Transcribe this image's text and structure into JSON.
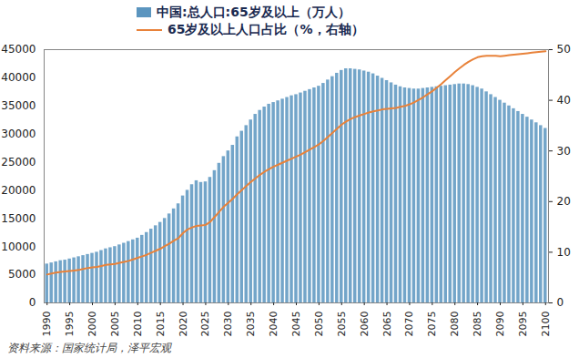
{
  "chart_data": {
    "type": "bar",
    "legend": "top",
    "grid": false,
    "caption": "资料来源：国家统计局，泽平宏观",
    "categories": [
      "1990",
      null,
      null,
      null,
      null,
      "1995",
      null,
      null,
      null,
      null,
      "2000",
      null,
      null,
      null,
      null,
      "2005",
      null,
      null,
      null,
      null,
      "2010",
      null,
      null,
      null,
      null,
      "2015",
      null,
      null,
      null,
      null,
      "2020",
      null,
      null,
      null,
      null,
      "2025",
      null,
      null,
      null,
      null,
      "2030",
      null,
      null,
      null,
      null,
      "2035",
      null,
      null,
      null,
      null,
      "2040",
      null,
      null,
      null,
      null,
      "2045",
      null,
      null,
      null,
      null,
      "2050",
      null,
      null,
      null,
      null,
      "2055",
      null,
      null,
      null,
      null,
      "2060",
      null,
      null,
      null,
      null,
      "2065",
      null,
      null,
      null,
      null,
      "2070",
      null,
      null,
      null,
      null,
      "2075",
      null,
      null,
      null,
      null,
      "2080",
      null,
      null,
      null,
      null,
      "2085",
      null,
      null,
      null,
      null,
      "2090",
      null,
      null,
      null,
      null,
      "2095",
      null,
      null,
      null,
      null,
      "2100"
    ],
    "ylim": [
      0,
      45000
    ],
    "yticks": [
      0,
      5000,
      10000,
      15000,
      20000,
      25000,
      30000,
      35000,
      40000,
      45000
    ],
    "y2lim": [
      0,
      50
    ],
    "y2ticks": [
      0,
      10,
      20,
      30,
      40,
      50
    ],
    "series": [
      {
        "name": "中国:总人口:65岁及以上（万人）",
        "type": "bar",
        "color": "#5b95bf",
        "values": [
          6900,
          7100,
          7300,
          7500,
          7600,
          7800,
          8000,
          8200,
          8400,
          8600,
          8800,
          9000,
          9300,
          9600,
          9800,
          10000,
          10300,
          10600,
          10900,
          11200,
          11500,
          12000,
          12500,
          13100,
          13700,
          14300,
          15000,
          15800,
          16700,
          17600,
          19000,
          20000,
          21000,
          21700,
          21400,
          21500,
          22300,
          23500,
          24800,
          26000,
          27000,
          28000,
          29500,
          30500,
          31500,
          32500,
          33500,
          34200,
          34800,
          35300,
          35600,
          35900,
          36200,
          36500,
          36800,
          37000,
          37300,
          37600,
          37900,
          38200,
          38500,
          39000,
          39600,
          40200,
          40800,
          41300,
          41600,
          41600,
          41500,
          41400,
          41200,
          41000,
          40700,
          40300,
          39900,
          39500,
          39100,
          38700,
          38400,
          38200,
          38100,
          38000,
          38000,
          38100,
          38200,
          38300,
          38400,
          38500,
          38600,
          38700,
          38800,
          38900,
          38900,
          38800,
          38600,
          38300,
          38000,
          37500,
          37000,
          36500,
          36000,
          35500,
          35000,
          34500,
          34000,
          33500,
          33000,
          32500,
          32000,
          31500,
          31000
        ]
      },
      {
        "name": "65岁及以上人口占比（%，右轴）",
        "type": "line",
        "color": "#e8823a",
        "axis": "y2",
        "values": [
          5.6,
          5.8,
          6.0,
          6.1,
          6.2,
          6.3,
          6.4,
          6.5,
          6.7,
          6.9,
          7.0,
          7.1,
          7.3,
          7.5,
          7.6,
          7.7,
          7.9,
          8.1,
          8.3,
          8.6,
          8.9,
          9.2,
          9.5,
          9.9,
          10.3,
          10.7,
          11.2,
          11.7,
          12.3,
          12.8,
          13.8,
          14.5,
          14.9,
          15.2,
          15.3,
          15.4,
          16.0,
          17.0,
          18.0,
          19.0,
          19.8,
          20.6,
          21.5,
          22.3,
          23.1,
          23.9,
          24.6,
          25.3,
          25.9,
          26.4,
          26.9,
          27.3,
          27.7,
          28.1,
          28.5,
          28.9,
          29.3,
          29.8,
          30.3,
          30.8,
          31.3,
          32.0,
          32.8,
          33.6,
          34.4,
          35.2,
          35.8,
          36.3,
          36.7,
          37.0,
          37.3,
          37.6,
          37.8,
          38.0,
          38.2,
          38.3,
          38.4,
          38.5,
          38.7,
          38.9,
          39.2,
          39.6,
          40.1,
          40.6,
          41.2,
          41.8,
          42.5,
          43.2,
          44.0,
          44.8,
          45.6,
          46.3,
          47.0,
          47.6,
          48.1,
          48.5,
          48.7,
          48.8,
          48.8,
          48.8,
          48.7,
          48.8,
          48.9,
          49.0,
          49.1,
          49.2,
          49.3,
          49.4,
          49.5,
          49.6,
          49.7
        ]
      }
    ]
  }
}
